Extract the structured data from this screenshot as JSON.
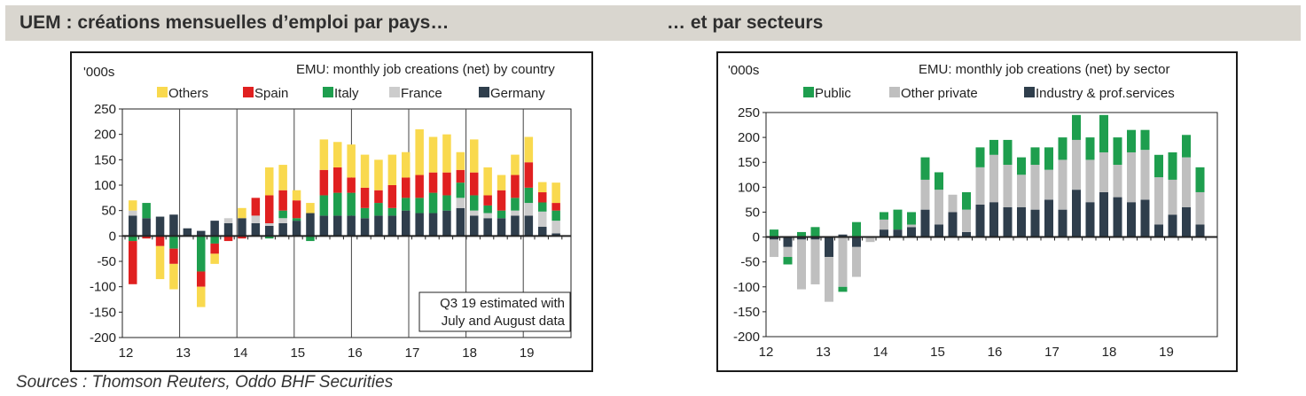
{
  "header": {
    "left_title": "UEM : créations mensuelles d’emploi par pays…",
    "right_title": "… et par secteurs"
  },
  "footer": {
    "sources": "Sources : Thomson Reuters, Oddo BHF Securities"
  },
  "chart_data": [
    {
      "type": "bar",
      "stacked": true,
      "title": "EMU: monthly job creations (net) by country",
      "ylabel": "'000s",
      "ylim": [
        -200,
        250
      ],
      "yticks": [
        -200,
        -150,
        -100,
        -50,
        0,
        50,
        100,
        150,
        200,
        250
      ],
      "xtick_labels": [
        "12",
        "13",
        "14",
        "15",
        "16",
        "17",
        "18",
        "19"
      ],
      "grid": true,
      "legend_position": "top",
      "annotation": [
        "Q3 19 estimated with",
        "July and August data"
      ],
      "series": [
        {
          "name": "Germany",
          "color": "#2f3e4c",
          "values": [
            40,
            35,
            38,
            42,
            15,
            10,
            30,
            25,
            35,
            25,
            20,
            25,
            30,
            45,
            40,
            40,
            40,
            35,
            40,
            40,
            50,
            45,
            45,
            50,
            55,
            40,
            35,
            35,
            40,
            40,
            18,
            5
          ]
        },
        {
          "name": "France",
          "color": "#cccccc",
          "values": [
            10,
            0,
            0,
            0,
            0,
            0,
            0,
            10,
            0,
            15,
            5,
            10,
            0,
            0,
            0,
            0,
            0,
            0,
            0,
            0,
            0,
            0,
            0,
            0,
            20,
            10,
            10,
            0,
            10,
            25,
            30,
            25
          ]
        },
        {
          "name": "Italy",
          "color": "#1e9e4e",
          "values": [
            -10,
            30,
            0,
            -25,
            0,
            -70,
            -15,
            0,
            0,
            0,
            -5,
            15,
            5,
            -10,
            40,
            45,
            45,
            20,
            25,
            15,
            25,
            30,
            40,
            30,
            30,
            30,
            15,
            15,
            25,
            30,
            18,
            20
          ]
        },
        {
          "name": "Spain",
          "color": "#e02020",
          "values": [
            -85,
            -5,
            -20,
            -30,
            0,
            -30,
            -20,
            -10,
            -5,
            35,
            55,
            40,
            35,
            0,
            50,
            50,
            30,
            40,
            25,
            45,
            40,
            45,
            40,
            45,
            25,
            45,
            20,
            40,
            45,
            50,
            20,
            15
          ]
        },
        {
          "name": "Others",
          "color": "#f9d94e",
          "values": [
            20,
            0,
            -65,
            -50,
            0,
            -40,
            -20,
            0,
            20,
            0,
            55,
            50,
            20,
            20,
            60,
            50,
            65,
            65,
            60,
            60,
            50,
            90,
            70,
            75,
            35,
            65,
            55,
            30,
            40,
            50,
            20,
            40
          ]
        }
      ]
    },
    {
      "type": "bar",
      "stacked": true,
      "title": "EMU: monthly job creations (net) by sector",
      "ylabel": "'000s",
      "ylim": [
        -200,
        250
      ],
      "yticks": [
        -200,
        -150,
        -100,
        -50,
        0,
        50,
        100,
        150,
        200,
        250
      ],
      "xtick_labels": [
        "12",
        "13",
        "14",
        "15",
        "16",
        "17",
        "18",
        "19"
      ],
      "grid": false,
      "legend_position": "top",
      "series": [
        {
          "name": "Industry & prof.services",
          "color": "#2f3e4c",
          "values": [
            -5,
            -20,
            -5,
            -5,
            -40,
            5,
            -20,
            0,
            15,
            15,
            20,
            55,
            25,
            50,
            10,
            65,
            70,
            60,
            60,
            55,
            75,
            55,
            95,
            70,
            90,
            80,
            70,
            75,
            25,
            45,
            60,
            25
          ]
        },
        {
          "name": "Other private",
          "color": "#bfbfbf",
          "values": [
            -35,
            -20,
            -100,
            -90,
            -90,
            -100,
            -60,
            -10,
            20,
            0,
            5,
            60,
            70,
            35,
            45,
            75,
            95,
            85,
            65,
            90,
            60,
            100,
            100,
            85,
            80,
            65,
            100,
            100,
            95,
            70,
            100,
            65
          ]
        },
        {
          "name": "Public",
          "color": "#1e9e4e",
          "values": [
            15,
            -15,
            10,
            20,
            0,
            -10,
            30,
            0,
            15,
            40,
            25,
            45,
            35,
            0,
            35,
            40,
            30,
            50,
            35,
            35,
            45,
            45,
            50,
            45,
            75,
            55,
            45,
            40,
            45,
            55,
            45,
            50
          ]
        }
      ]
    }
  ]
}
